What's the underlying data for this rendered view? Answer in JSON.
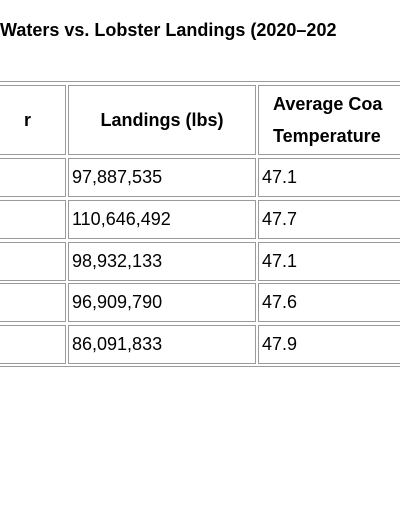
{
  "title": "Waters vs. Lobster Landings (2020–202",
  "table": {
    "header": [
      "r",
      "Landings (lbs)",
      [
        "Average Coa",
        "Temperature"
      ]
    ],
    "rows": [
      [
        "97,887,535",
        "47.1"
      ],
      [
        "110,646,492",
        "47.7"
      ],
      [
        "98,932,133",
        "47.1"
      ],
      [
        "96,909,790",
        "47.6"
      ],
      [
        "86,091,833",
        "47.9"
      ]
    ]
  }
}
